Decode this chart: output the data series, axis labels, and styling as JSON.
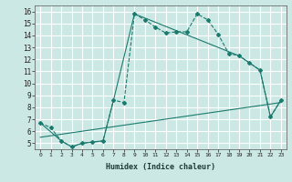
{
  "xlabel": "Humidex (Indice chaleur)",
  "bg_color": "#cce8e4",
  "grid_color": "#ffffff",
  "line_color": "#1a7a6e",
  "xlim": [
    -0.5,
    23.5
  ],
  "ylim": [
    4.5,
    16.5
  ],
  "xticks": [
    0,
    1,
    2,
    3,
    4,
    5,
    6,
    7,
    8,
    9,
    10,
    11,
    12,
    13,
    14,
    15,
    16,
    17,
    18,
    19,
    20,
    21,
    22,
    23
  ],
  "yticks": [
    5,
    6,
    7,
    8,
    9,
    10,
    11,
    12,
    13,
    14,
    15,
    16
  ],
  "series": [
    {
      "x": [
        0,
        1,
        2,
        3,
        4,
        5,
        6,
        7,
        8,
        9,
        10,
        11,
        12,
        13,
        14,
        15,
        16,
        17,
        18,
        19,
        20,
        21,
        22,
        23
      ],
      "y": [
        6.7,
        6.3,
        5.2,
        4.7,
        5.0,
        5.1,
        5.2,
        8.6,
        8.4,
        15.8,
        15.3,
        14.7,
        14.2,
        14.3,
        14.3,
        15.8,
        15.3,
        14.1,
        12.5,
        12.3,
        11.7,
        11.1,
        7.2,
        8.6
      ],
      "marker": "D",
      "markersize": 2.0,
      "linestyle": "--",
      "linewidth": 0.8
    },
    {
      "x": [
        0,
        2,
        3,
        4,
        5,
        6,
        7,
        9,
        19,
        20,
        21,
        22,
        23
      ],
      "y": [
        6.7,
        5.2,
        4.7,
        5.0,
        5.1,
        5.2,
        8.6,
        15.8,
        12.3,
        11.7,
        11.1,
        7.2,
        8.6
      ],
      "marker": null,
      "markersize": 0,
      "linestyle": "-",
      "linewidth": 0.8
    },
    {
      "x": [
        0,
        23
      ],
      "y": [
        5.5,
        8.4
      ],
      "marker": null,
      "markersize": 0,
      "linestyle": "-",
      "linewidth": 0.8
    }
  ]
}
